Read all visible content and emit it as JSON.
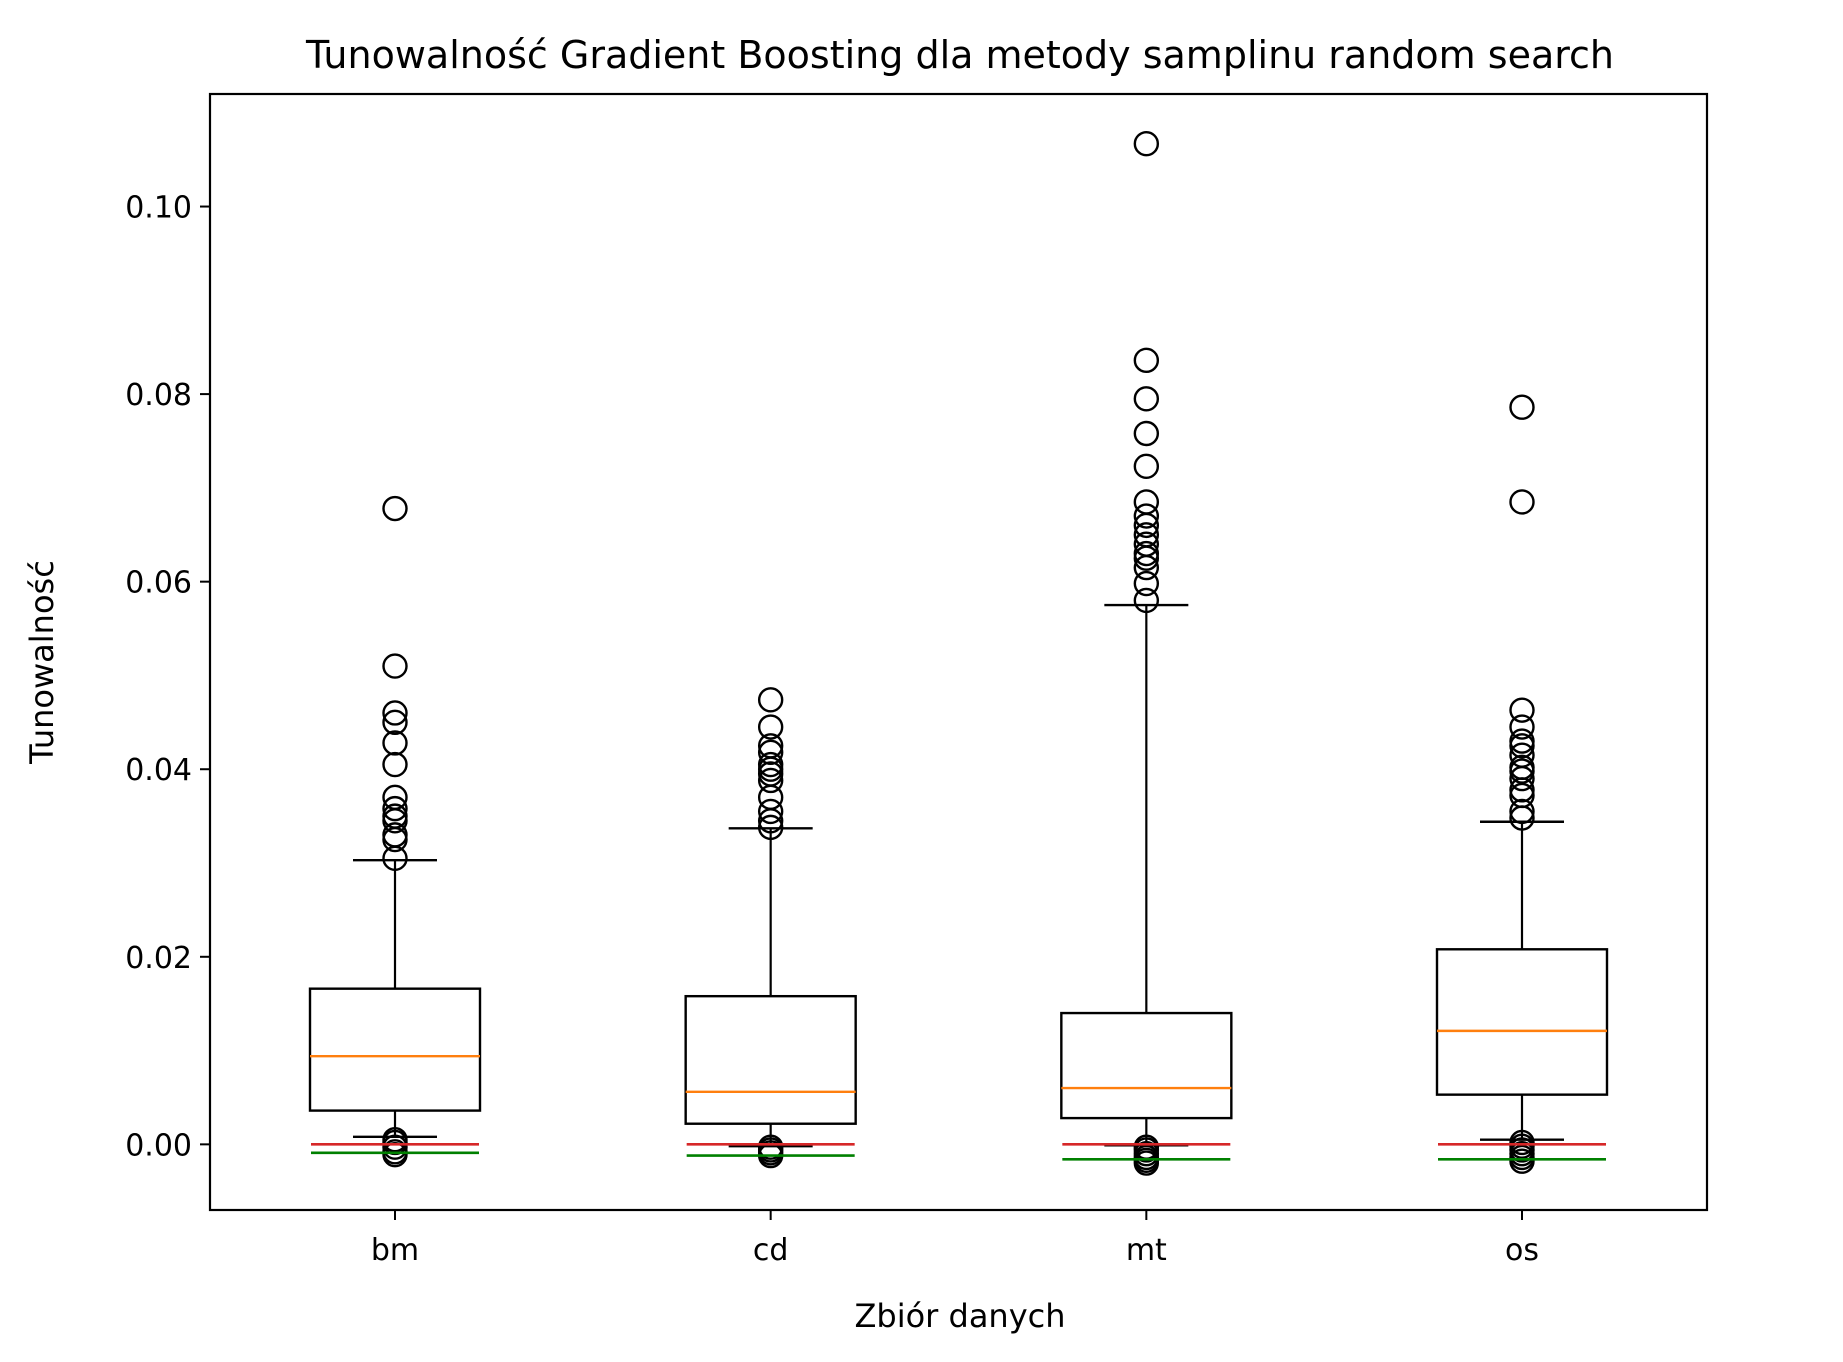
{
  "chart_data": {
    "type": "box",
    "title": "Tunowalność Gradient Boosting dla metody samplinu random search",
    "xlabel": "Zbiór danych",
    "ylabel": "Tunowalność",
    "ylim": [
      -0.007,
      0.112
    ],
    "yticks": [
      "0.00",
      "0.02",
      "0.04",
      "0.06",
      "0.08",
      "0.10"
    ],
    "categories": [
      "bm",
      "cd",
      "mt",
      "os"
    ],
    "grid": false,
    "legend": "none",
    "colors": {
      "box": "#000000",
      "median": "#ff7f0e",
      "red_line": "#d62728",
      "green_line": "#008000"
    },
    "boxes": [
      {
        "category": "bm",
        "whisker_low": 0.0008,
        "q1": 0.0036,
        "median": 0.0094,
        "q3": 0.0166,
        "whisker_high": 0.0303,
        "red_line": 0.0,
        "green_line": -0.0009,
        "outliers_high": [
          0.0305,
          0.0325,
          0.033,
          0.0345,
          0.035,
          0.0358,
          0.037,
          0.0405,
          0.0428,
          0.045,
          0.046,
          0.051,
          0.0678
        ],
        "outliers_low": [
          0.0005,
          0.0002,
          -0.0003,
          -0.0008,
          -0.0011
        ]
      },
      {
        "category": "cd",
        "whisker_low": -0.0002,
        "q1": 0.0022,
        "median": 0.0056,
        "q3": 0.0158,
        "whisker_high": 0.0337,
        "red_line": 0.0,
        "green_line": -0.0012,
        "outliers_high": [
          0.0338,
          0.0345,
          0.0355,
          0.037,
          0.0388,
          0.0395,
          0.04,
          0.0405,
          0.0418,
          0.0425,
          0.0445,
          0.0474
        ],
        "outliers_low": [
          -0.0003,
          -0.0006,
          -0.0009,
          -0.0012
        ]
      },
      {
        "category": "mt",
        "whisker_low": -0.0001,
        "q1": 0.0028,
        "median": 0.006,
        "q3": 0.014,
        "whisker_high": 0.0575,
        "red_line": 0.0,
        "green_line": -0.0016,
        "outliers_high": [
          0.058,
          0.0598,
          0.0615,
          0.0625,
          0.063,
          0.064,
          0.065,
          0.066,
          0.067,
          0.0685,
          0.0723,
          0.0758,
          0.0795,
          0.0836,
          0.1067
        ],
        "outliers_low": [
          -0.0003,
          -0.0006,
          -0.001,
          -0.0014,
          -0.0017,
          -0.002
        ]
      },
      {
        "category": "os",
        "whisker_low": 0.0005,
        "q1": 0.0053,
        "median": 0.0121,
        "q3": 0.0208,
        "whisker_high": 0.0344,
        "red_line": 0.0,
        "green_line": -0.0016,
        "outliers_high": [
          0.0348,
          0.0355,
          0.0372,
          0.0378,
          0.039,
          0.0398,
          0.0402,
          0.0415,
          0.0425,
          0.043,
          0.0445,
          0.0463,
          0.0685,
          0.0786
        ],
        "outliers_low": [
          0.0002,
          -0.0002,
          -0.0006,
          -0.001,
          -0.0014,
          -0.0018
        ]
      }
    ]
  }
}
